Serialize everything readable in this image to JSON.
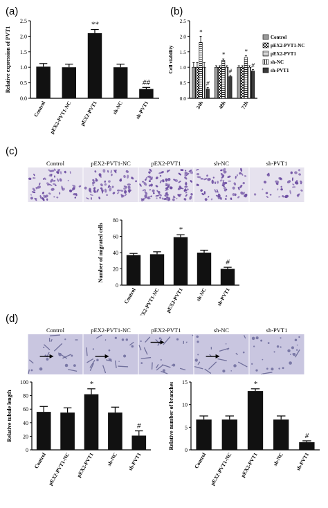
{
  "panels": {
    "a": "(a)",
    "b": "(b)",
    "c": "(c)",
    "d": "(d)"
  },
  "colors": {
    "bar": "#111111",
    "transwell_bg": "#e6e2ee",
    "transwell_cell": "#6a4aa0",
    "tube_bg": "#c9c6e0",
    "tube_line": "#5a5a8a"
  },
  "image_strips": {
    "c": [
      "Control",
      "pEX2-PVT1-NC",
      "pEX2-PVT1",
      "sh-NC",
      "sh-PVT1"
    ],
    "d": [
      "Control",
      "pEX2-PVT1-NC",
      "pEX2-PVT1",
      "sh-NC",
      "sh-PVT1"
    ]
  },
  "chart_data": [
    {
      "id": "a",
      "type": "bar",
      "categories": [
        "Control",
        "pEX2-PVT1-NC",
        "pEX2-PVT1",
        "sh-NC",
        "sh-PVT1"
      ],
      "values": [
        1.02,
        1.0,
        2.1,
        1.0,
        0.3
      ],
      "errors": [
        0.1,
        0.1,
        0.12,
        0.1,
        0.05
      ],
      "annotations": [
        "",
        "",
        "**",
        "",
        "##"
      ],
      "ylabel": "Relative expression of PVT1",
      "ylim": [
        0,
        2.5
      ],
      "yticks": [
        0.0,
        0.5,
        1.0,
        1.5,
        2.0,
        2.5
      ],
      "grid": false
    },
    {
      "id": "b",
      "type": "bar",
      "categories": [
        "24h",
        "48h",
        "72h"
      ],
      "series": [
        {
          "name": "Control",
          "pattern": "gray",
          "values": [
            1.0,
            1.0,
            1.0
          ],
          "errors": [
            0.15,
            0.05,
            0.05
          ]
        },
        {
          "name": "pEX2-PVT1-NC",
          "pattern": "checker",
          "values": [
            1.0,
            1.0,
            1.0
          ],
          "errors": [
            0.15,
            0.05,
            0.05
          ]
        },
        {
          "name": "pEX2-PVT1",
          "pattern": "hlines",
          "values": [
            1.8,
            1.22,
            1.32
          ],
          "errors": [
            0.2,
            0.05,
            0.05
          ]
        },
        {
          "name": "sh-NC",
          "pattern": "vlines",
          "values": [
            1.0,
            1.0,
            1.0
          ],
          "errors": [
            0.15,
            0.05,
            0.05
          ]
        },
        {
          "name": "sh-PVT1",
          "pattern": "dark",
          "values": [
            0.3,
            0.7,
            0.88
          ],
          "errors": [
            0.05,
            0.04,
            0.05
          ]
        }
      ],
      "annotations": [
        [
          "",
          "",
          "*",
          "",
          "#"
        ],
        [
          "",
          "",
          "*",
          "",
          "#"
        ],
        [
          "",
          "",
          "*",
          "",
          "#"
        ]
      ],
      "ylabel": "Cell viability",
      "ylim": [
        0,
        2.5
      ],
      "yticks": [
        0.0,
        0.5,
        1.0,
        1.5,
        2.0,
        2.5
      ],
      "legend": "right",
      "grid": false
    },
    {
      "id": "c",
      "type": "bar",
      "categories": [
        "Control",
        "pEX2-PVT1-NC",
        "pEX2-PVT1",
        "sh-NC",
        "sh-PVT1"
      ],
      "values": [
        37,
        38,
        59,
        40,
        20
      ],
      "errors": [
        2,
        3,
        3,
        3,
        2
      ],
      "annotations": [
        "",
        "",
        "*",
        "",
        "#"
      ],
      "ylabel": "Number of migrated cells",
      "ylim": [
        0,
        80
      ],
      "yticks": [
        0,
        20,
        40,
        60,
        80
      ],
      "grid": false
    },
    {
      "id": "d1",
      "type": "bar",
      "categories": [
        "Control",
        "pEX2-PVT1-NC",
        "pEX2-PVT1",
        "sh-NC",
        "sh-PVT1"
      ],
      "values": [
        56,
        55,
        82,
        55,
        21
      ],
      "errors": [
        8,
        7,
        8,
        8,
        7
      ],
      "annotations": [
        "",
        "",
        "*",
        "",
        "#"
      ],
      "ylabel": "Relative tubule length",
      "ylim": [
        0,
        100
      ],
      "yticks": [
        0,
        20,
        40,
        60,
        80,
        100
      ],
      "grid": false
    },
    {
      "id": "d2",
      "type": "bar",
      "categories": [
        "Control",
        "pEX2-PVT1-NC",
        "pEX2-PVT1",
        "sh-NC",
        "sh-PVT1"
      ],
      "values": [
        6.7,
        6.7,
        13.0,
        6.7,
        1.7
      ],
      "errors": [
        0.8,
        0.8,
        0.5,
        0.8,
        0.3
      ],
      "annotations": [
        "",
        "",
        "*",
        "",
        "#"
      ],
      "ylabel": "Relative number of branches",
      "ylim": [
        0,
        15
      ],
      "yticks": [
        0,
        5,
        10,
        15
      ],
      "grid": false
    }
  ]
}
